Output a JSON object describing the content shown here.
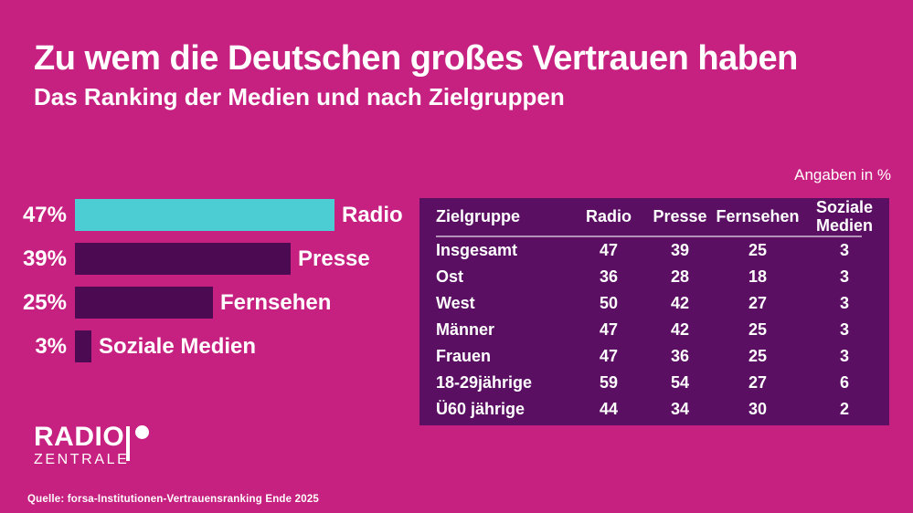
{
  "colors": {
    "background": "#c62181",
    "bar_teal": "#4ccdd3",
    "bar_purple": "#4c0a52",
    "table_bg": "#5a0f63"
  },
  "header": {
    "title": "Zu wem die Deutschen großes Vertrauen haben",
    "subtitle": "Das Ranking der Medien und nach Zielgruppen"
  },
  "note": "Angaben in %",
  "chart_data": [
    {
      "type": "bar",
      "orientation": "horizontal",
      "title": "Zu wem die Deutschen großes Vertrauen haben",
      "subtitle": "Das Ranking der Medien und nach Zielgruppen",
      "unit": "%",
      "annotation": "Angaben in %",
      "categories": [
        "Radio",
        "Presse",
        "Fernsehen",
        "Soziale Medien"
      ],
      "values": [
        47,
        39,
        25,
        3
      ],
      "value_labels": [
        "47%",
        "39%",
        "25%",
        "3%"
      ],
      "highlight_category": "Radio",
      "xlim": [
        0,
        50
      ],
      "grid": false,
      "legend": false
    },
    {
      "type": "table",
      "headers": [
        "Zielgruppe",
        "Radio",
        "Presse",
        "Fernsehen",
        "Soziale Medien"
      ],
      "rows": [
        [
          "Insgesamt",
          47,
          39,
          25,
          3
        ],
        [
          "Ost",
          36,
          28,
          18,
          3
        ],
        [
          "West",
          50,
          42,
          27,
          3
        ],
        [
          "Männer",
          47,
          42,
          25,
          3
        ],
        [
          "Frauen",
          47,
          36,
          25,
          3
        ],
        [
          "18-29jährige",
          59,
          54,
          27,
          6
        ],
        [
          "Ü60 jährige",
          44,
          34,
          30,
          2
        ]
      ]
    }
  ],
  "logo": {
    "line1": "RADIO",
    "line2": "ZENTRALE"
  },
  "source": "Quelle: forsa-Institutionen-Vertrauensranking Ende 2025"
}
